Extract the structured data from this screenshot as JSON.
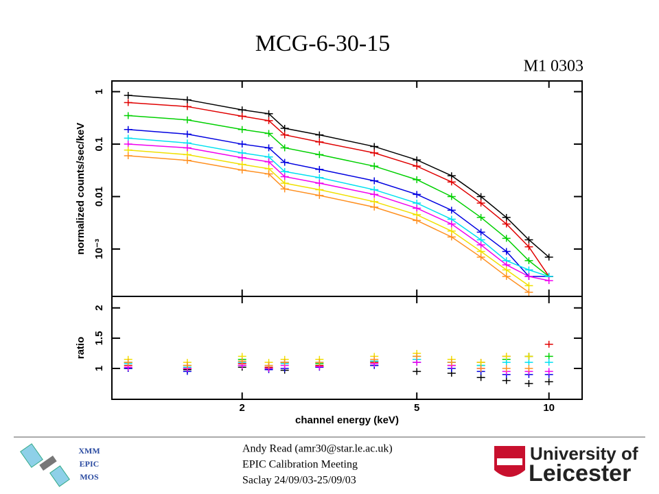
{
  "title": "MCG-6-30-15",
  "subtitle": "M1 0303",
  "footer": {
    "left": [
      "XMM",
      "EPIC",
      "MOS"
    ],
    "center": [
      "Andy Read (amr30@star.le.ac.uk)",
      "EPIC Calibration Meeting",
      "Saclay 24/09/03-25/09/03"
    ],
    "logo": [
      "University of",
      "Leicester"
    ]
  },
  "chart_data": [
    {
      "type": "line",
      "ylabel": "normalized counts/sec/keV",
      "xlog": true,
      "ylog": true,
      "x": [
        1.1,
        1.5,
        2,
        2.3,
        2.5,
        3,
        4,
        5,
        6,
        7,
        8,
        9,
        10
      ],
      "xlim": [
        1.01,
        11.9
      ],
      "ylim": [
        0.000125,
        1.6
      ],
      "yticks": [
        1,
        0.1,
        0.01,
        {
          "value": 0.001,
          "label": "10⁻³"
        }
      ],
      "series": [
        {
          "color": "#000000",
          "values": [
            0.85,
            0.7,
            0.45,
            0.38,
            0.2,
            0.15,
            0.09,
            0.05,
            0.025,
            0.01,
            0.004,
            0.0015,
            0.0007
          ]
        },
        {
          "color": "#e00000",
          "values": [
            0.62,
            0.52,
            0.34,
            0.28,
            0.15,
            0.11,
            0.068,
            0.038,
            0.019,
            0.0075,
            0.003,
            0.0011,
            0.0003
          ]
        },
        {
          "color": "#00d000",
          "values": [
            0.35,
            0.29,
            0.19,
            0.16,
            0.085,
            0.063,
            0.038,
            0.021,
            0.01,
            0.004,
            0.0016,
            0.0006,
            0.0003
          ]
        },
        {
          "color": "#0000e0",
          "values": [
            0.19,
            0.155,
            0.1,
            0.085,
            0.045,
            0.033,
            0.02,
            0.011,
            0.0055,
            0.0021,
            0.0009,
            0.0003,
            0.0003
          ]
        },
        {
          "color": "#00e0f0",
          "values": [
            0.13,
            0.105,
            0.068,
            0.057,
            0.03,
            0.023,
            0.0135,
            0.0075,
            0.0037,
            0.0015,
            0.0006,
            0.0004,
            0.0003
          ]
        },
        {
          "color": "#f000f0",
          "values": [
            0.1,
            0.085,
            0.055,
            0.046,
            0.024,
            0.018,
            0.011,
            0.006,
            0.003,
            0.0012,
            0.0005,
            0.0003,
            0.00025
          ]
        },
        {
          "color": "#f0e000",
          "values": [
            0.077,
            0.063,
            0.041,
            0.034,
            0.018,
            0.0135,
            0.008,
            0.0045,
            0.0022,
            0.0009,
            0.0004,
            0.0002,
            null
          ]
        },
        {
          "color": "#ff9020",
          "values": [
            0.06,
            0.049,
            0.032,
            0.027,
            0.014,
            0.0105,
            0.0063,
            0.0035,
            0.0017,
            0.0007,
            0.0003,
            0.00015,
            null
          ]
        }
      ]
    },
    {
      "type": "scatter",
      "ylabel": "ratio",
      "xlabel": "channel energy (keV)",
      "xlog": true,
      "x": [
        1.1,
        1.5,
        2,
        2.3,
        2.5,
        3,
        4,
        5,
        6,
        7,
        8,
        9,
        10
      ],
      "xlim": [
        1.01,
        11.9
      ],
      "ylim": [
        0.49,
        2.19
      ],
      "xticks": [
        2,
        5,
        10
      ],
      "yticks": [
        1,
        1.5,
        2
      ],
      "series": [
        {
          "color": "#000000",
          "values": [
            1.0,
            0.98,
            1.02,
            1.0,
            0.97,
            1.03,
            1.05,
            0.95,
            0.92,
            0.85,
            0.8,
            0.75,
            0.78
          ]
        },
        {
          "color": "#e00000",
          "values": [
            1.05,
            1.0,
            1.08,
            1.02,
            1.1,
            1.05,
            1.1,
            1.15,
            1.05,
            1.1,
            1.2,
            1.2,
            1.4
          ]
        },
        {
          "color": "#00d000",
          "values": [
            1.1,
            1.05,
            1.15,
            1.0,
            1.1,
            1.08,
            1.12,
            1.2,
            1.1,
            1.05,
            1.15,
            1.2,
            1.2
          ]
        },
        {
          "color": "#0000e0",
          "values": [
            1.0,
            0.95,
            1.05,
            0.98,
            1.0,
            1.02,
            1.05,
            1.1,
            1.0,
            0.95,
            0.9,
            0.9,
            0.9
          ]
        },
        {
          "color": "#00e0f0",
          "values": [
            1.08,
            1.02,
            1.1,
            1.05,
            1.08,
            1.1,
            1.12,
            1.15,
            1.1,
            1.05,
            1.1,
            1.1,
            1.1
          ]
        },
        {
          "color": "#f000f0",
          "values": [
            1.02,
            1.0,
            1.05,
            1.0,
            1.05,
            1.03,
            1.08,
            1.1,
            1.05,
            1.0,
            0.95,
            0.95,
            0.95
          ]
        },
        {
          "color": "#f0e000",
          "values": [
            1.15,
            1.1,
            1.2,
            1.1,
            1.15,
            1.15,
            1.2,
            1.25,
            1.15,
            1.1,
            1.2,
            1.2,
            null
          ]
        },
        {
          "color": "#ff9020",
          "values": [
            1.1,
            1.05,
            1.12,
            1.05,
            1.1,
            1.1,
            1.15,
            1.2,
            1.1,
            1.0,
            1.0,
            1.0,
            null
          ]
        }
      ]
    }
  ]
}
